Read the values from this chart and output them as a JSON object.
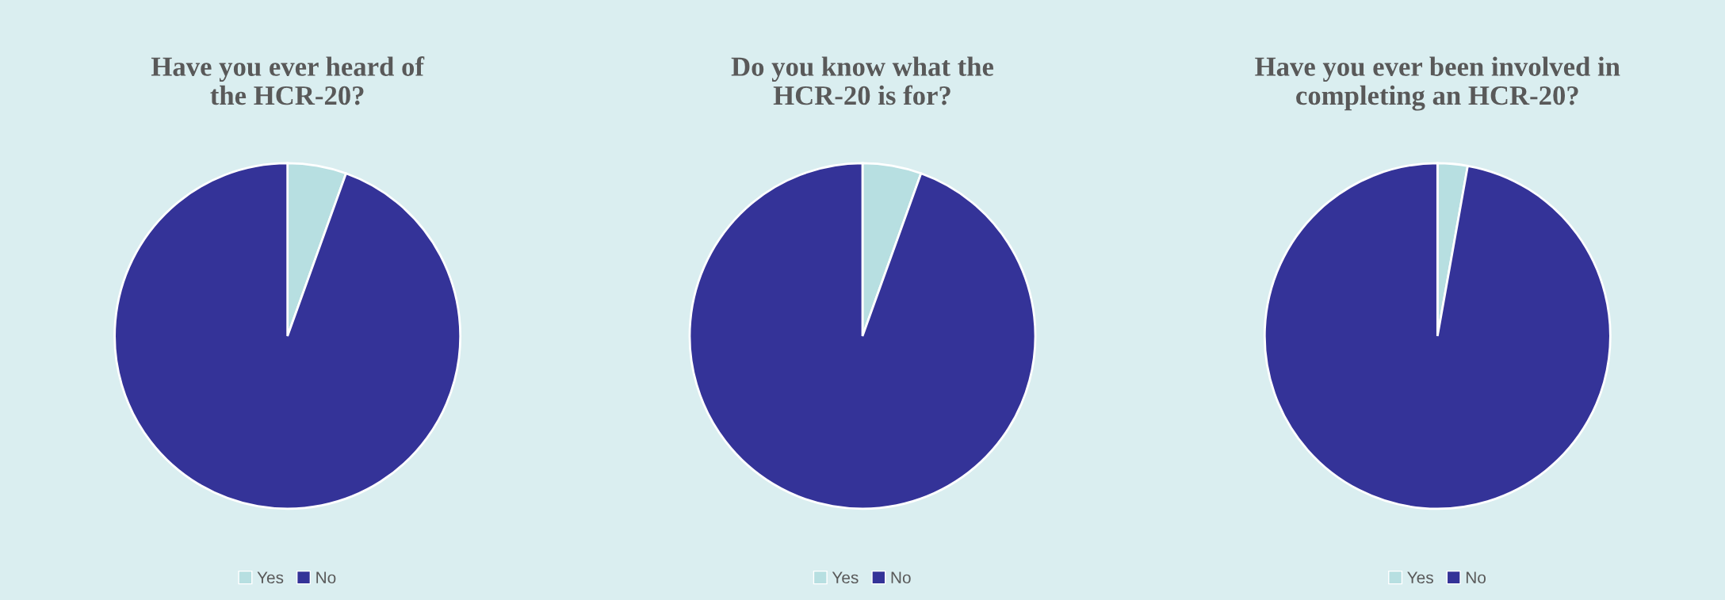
{
  "chart_data": [
    {
      "type": "pie",
      "title": "Have you ever heard of\nthe HCR-20?",
      "categories": [
        "Yes",
        "No"
      ],
      "values": [
        5.5,
        94.5
      ],
      "colors": [
        "#b7dfe1",
        "#343398"
      ],
      "legend": "bottom"
    },
    {
      "type": "pie",
      "title": "Do you know what the\nHCR-20 is for?",
      "categories": [
        "Yes",
        "No"
      ],
      "values": [
        5.5,
        94.5
      ],
      "colors": [
        "#b7dfe1",
        "#343398"
      ],
      "legend": "bottom"
    },
    {
      "type": "pie",
      "title": "Have you ever been involved in\ncompleting an HCR-20?",
      "categories": [
        "Yes",
        "No"
      ],
      "values": [
        2.8,
        97.2
      ],
      "colors": [
        "#b7dfe1",
        "#343398"
      ],
      "legend": "bottom"
    }
  ]
}
